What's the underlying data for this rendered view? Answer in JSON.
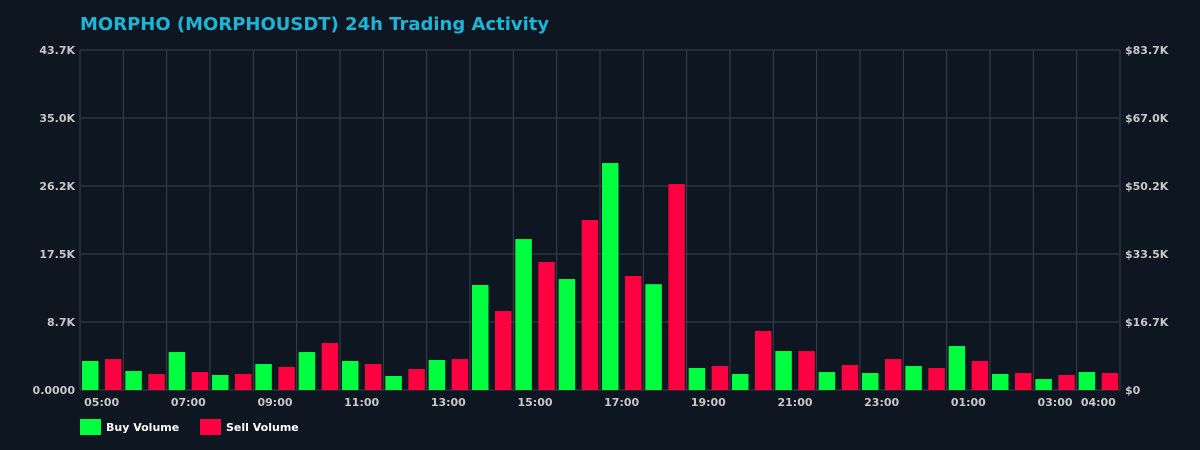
{
  "chart_data": {
    "type": "bar",
    "title": "MORPHO (MORPHOUSDT) 24h Trading Activity",
    "xlabel": "",
    "ylabel": "",
    "categories": [
      "05:00",
      "06:00",
      "07:00",
      "08:00",
      "09:00",
      "10:00",
      "11:00",
      "12:00",
      "13:00",
      "14:00",
      "15:00",
      "16:00",
      "17:00",
      "18:00",
      "19:00",
      "20:00",
      "21:00",
      "22:00",
      "23:00",
      "00:00",
      "01:00",
      "02:00",
      "03:00",
      "04:00"
    ],
    "x_tick_labels": [
      "05:00",
      "07:00",
      "09:00",
      "11:00",
      "13:00",
      "15:00",
      "17:00",
      "19:00",
      "21:00",
      "23:00",
      "01:00",
      "03:00",
      "04:00"
    ],
    "x_tick_indices": [
      0,
      2,
      4,
      6,
      8,
      10,
      12,
      14,
      16,
      18,
      20,
      22,
      23
    ],
    "ylim": [
      0,
      43700
    ],
    "y_ticks_left": [
      "0.0000",
      "8.7K",
      "17.5K",
      "26.2K",
      "35.0K",
      "43.7K"
    ],
    "y_ticks_right": [
      "$0",
      "$16.7K",
      "$33.5K",
      "$50.2K",
      "$67.0K",
      "$83.7K"
    ],
    "grid": true,
    "legend_position": "bottom-left",
    "series": [
      {
        "name": "Buy Volume",
        "color": "#00ff41",
        "values": [
          3730,
          2440,
          4880,
          1930,
          3340,
          4880,
          3730,
          1800,
          3860,
          13500,
          19400,
          14260,
          29170,
          13600,
          2830,
          2060,
          5010,
          2310,
          2180,
          3080,
          5650,
          2060,
          1410,
          2310
        ]
      },
      {
        "name": "Sell Volume",
        "color": "#ff0040",
        "values": [
          3980,
          2060,
          2310,
          2060,
          2960,
          6040,
          3340,
          2700,
          3980,
          10150,
          16450,
          21850,
          14650,
          26470,
          3080,
          7580,
          5010,
          3210,
          3980,
          2830,
          3730,
          2180,
          1930,
          2180
        ]
      }
    ]
  }
}
